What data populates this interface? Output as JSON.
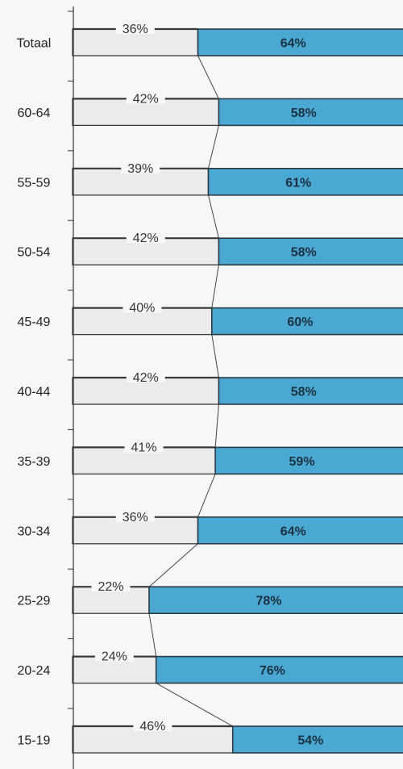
{
  "chart_data": {
    "type": "bar",
    "stacked": true,
    "orientation": "horizontal",
    "categories": [
      "Totaal",
      "60-64",
      "55-59",
      "50-54",
      "45-49",
      "40-44",
      "35-39",
      "30-34",
      "25-29",
      "20-24",
      "15-19"
    ],
    "series": [
      {
        "values": [
          36,
          42,
          39,
          42,
          40,
          42,
          41,
          36,
          22,
          24,
          46
        ],
        "labels": [
          "36%",
          "42%",
          "39%",
          "42%",
          "40%",
          "42%",
          "41%",
          "36%",
          "22%",
          "24%",
          "46%"
        ],
        "color": "#ebebeb"
      },
      {
        "values": [
          64,
          58,
          61,
          58,
          60,
          58,
          59,
          64,
          78,
          76,
          54
        ],
        "labels": [
          "64%",
          "58%",
          "61%",
          "58%",
          "60%",
          "58%",
          "59%",
          "64%",
          "78%",
          "76%",
          "54%"
        ],
        "color": "#4aa8d3"
      }
    ],
    "xlim": [
      0,
      100
    ],
    "unit": "%",
    "grid": false,
    "connector_lines": true
  }
}
